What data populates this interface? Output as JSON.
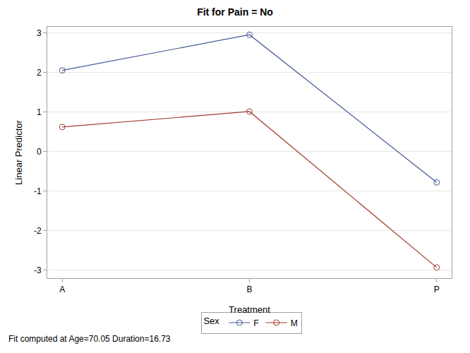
{
  "chart_data": {
    "type": "line",
    "title": "Fit for Pain = No",
    "x_label": "Treatment",
    "y_label": "Linear Predictor",
    "categories": [
      "A",
      "B",
      "P"
    ],
    "series": [
      {
        "name": "F",
        "color": "#445694",
        "values": [
          2.05,
          2.95,
          -0.78
        ]
      },
      {
        "name": "M",
        "color": "#a23a2e",
        "values": [
          0.62,
          1.01,
          -2.93
        ]
      }
    ],
    "legend_title": "Sex",
    "annotations": [
      "Fit computed at Age=70.05 Duration=16.73"
    ],
    "ylim": [
      -3.2,
      3.15
    ],
    "yticks": [
      -3,
      -2,
      -1,
      0,
      1,
      2,
      3
    ],
    "grid": true,
    "legend": "bottom",
    "marker": "circle-open",
    "line_style": "solid"
  }
}
